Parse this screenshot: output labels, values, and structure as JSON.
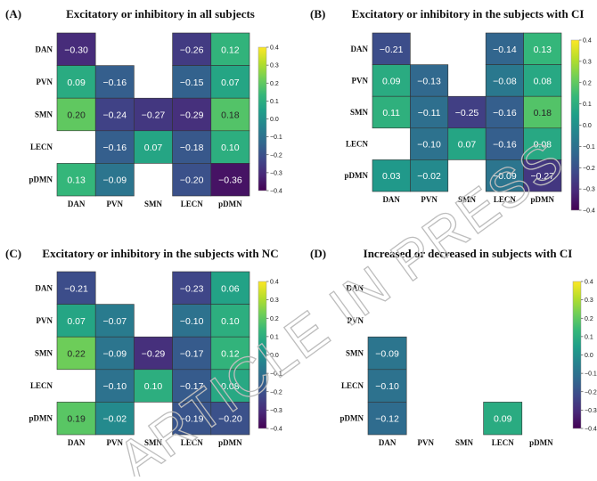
{
  "chart_data": [
    {
      "type": "heatmap",
      "panel_label": "(A)",
      "title": "Excitatory or inhibitory in all subjects",
      "x_categories": [
        "DAN",
        "PVN",
        "SMN",
        "LECN",
        "pDMN"
      ],
      "y_categories": [
        "DAN",
        "PVN",
        "SMN",
        "LECN",
        "pDMN"
      ],
      "values": [
        [
          -0.3,
          null,
          null,
          -0.26,
          0.12
        ],
        [
          0.09,
          -0.16,
          null,
          -0.15,
          0.07
        ],
        [
          0.2,
          -0.24,
          -0.27,
          -0.29,
          0.18
        ],
        [
          null,
          -0.16,
          0.07,
          -0.18,
          0.1
        ],
        [
          0.13,
          -0.09,
          null,
          -0.2,
          -0.36
        ]
      ],
      "vmin": -0.4,
      "vmax": 0.4,
      "colorbar_ticks": [
        "0.4",
        "0.3",
        "0.2",
        "0.1",
        "0.0",
        "−0.1",
        "−0.2",
        "−0.3",
        "−0.4"
      ]
    },
    {
      "type": "heatmap",
      "panel_label": "(B)",
      "title": "Excitatory or inhibitory in the subjects with CI",
      "x_categories": [
        "DAN",
        "PVN",
        "SMN",
        "LECN",
        "pDMN"
      ],
      "y_categories": [
        "DAN",
        "PVN",
        "SMN",
        "LECN",
        "pDMN"
      ],
      "values": [
        [
          -0.21,
          null,
          null,
          -0.14,
          0.13
        ],
        [
          0.09,
          -0.13,
          null,
          -0.08,
          0.08
        ],
        [
          0.11,
          -0.11,
          -0.25,
          -0.16,
          0.18
        ],
        [
          null,
          -0.1,
          0.07,
          -0.16,
          0.08
        ],
        [
          0.03,
          -0.02,
          null,
          -0.09,
          -0.27
        ]
      ],
      "vmin": -0.4,
      "vmax": 0.4,
      "colorbar_ticks": [
        "0.4",
        "0.3",
        "0.2",
        "0.1",
        "0.0",
        "−0.1",
        "−0.2",
        "−0.3",
        "−0.4"
      ]
    },
    {
      "type": "heatmap",
      "panel_label": "(C)",
      "title": "Excitatory or inhibitory in the subjects with NC",
      "x_categories": [
        "DAN",
        "PVN",
        "SMN",
        "LECN",
        "pDMN"
      ],
      "y_categories": [
        "DAN",
        "PVN",
        "SMN",
        "LECN",
        "pDMN"
      ],
      "values": [
        [
          -0.21,
          null,
          null,
          -0.23,
          0.06
        ],
        [
          0.07,
          -0.07,
          null,
          -0.1,
          0.1
        ],
        [
          0.22,
          -0.09,
          -0.29,
          -0.17,
          0.12
        ],
        [
          null,
          -0.1,
          0.1,
          -0.17,
          0.08
        ],
        [
          0.19,
          -0.02,
          null,
          -0.19,
          -0.2
        ]
      ],
      "vmin": -0.4,
      "vmax": 0.4,
      "colorbar_ticks": [
        "0.4",
        "0.3",
        "0.2",
        "0.1",
        "0.0",
        "−0.1",
        "−0.2",
        "−0.3",
        "−0.4"
      ]
    },
    {
      "type": "heatmap",
      "panel_label": "(D)",
      "title": "Increased or decreased in subjects with CI",
      "x_categories": [
        "DAN",
        "PVN",
        "SMN",
        "LECN",
        "pDMN"
      ],
      "y_categories": [
        "DAN",
        "PVN",
        "SMN",
        "LECN",
        "pDMN"
      ],
      "values": [
        [
          null,
          null,
          null,
          null,
          null
        ],
        [
          null,
          null,
          null,
          null,
          null
        ],
        [
          -0.09,
          null,
          null,
          null,
          null
        ],
        [
          -0.1,
          null,
          null,
          null,
          null
        ],
        [
          -0.12,
          null,
          null,
          0.09,
          null
        ]
      ],
      "vmin": -0.4,
      "vmax": 0.4,
      "colorbar_ticks": [
        "0.4",
        "0.3",
        "0.2",
        "0.1",
        "0.0",
        "−0.1",
        "−0.2",
        "−0.3",
        "−0.4"
      ]
    }
  ],
  "watermark": "ARTICLE IN PRESS",
  "colors": {
    "viridis_stops": [
      "#440154",
      "#482878",
      "#3e4989",
      "#31688e",
      "#26828e",
      "#1f9e89",
      "#35b779",
      "#6ece58",
      "#b5de2b",
      "#fde725"
    ]
  }
}
